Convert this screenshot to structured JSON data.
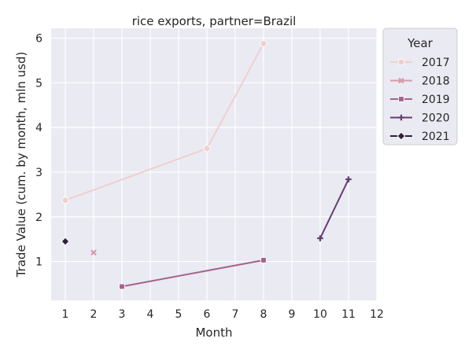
{
  "chart_data": {
    "type": "line",
    "title": "rice exports, partner=Brazil",
    "xlabel": "Month",
    "ylabel": "Trade Value (cum. by month, mln usd)",
    "xlim": [
      0.5,
      12
    ],
    "ylim": [
      0.13,
      6.22
    ],
    "xticks": [
      1,
      2,
      3,
      4,
      5,
      6,
      7,
      8,
      9,
      10,
      11,
      12
    ],
    "yticks": [
      1,
      2,
      3,
      4,
      5,
      6
    ],
    "grid": true,
    "background": "#eaeaf2",
    "legend": {
      "title": "Year",
      "placement": "outside-top-right"
    },
    "series": [
      {
        "name": "2017",
        "color": "#efd0cd",
        "marker": "circle",
        "x": [
          1,
          6,
          8
        ],
        "y": [
          2.37,
          3.53,
          5.88
        ]
      },
      {
        "name": "2018",
        "color": "#d89aaa",
        "marker": "x",
        "x": [
          2
        ],
        "y": [
          1.2
        ]
      },
      {
        "name": "2019",
        "color": "#a5628c",
        "marker": "square",
        "x": [
          3,
          8
        ],
        "y": [
          0.44,
          1.03
        ]
      },
      {
        "name": "2020",
        "color": "#683d73",
        "marker": "plus",
        "x": [
          10,
          11
        ],
        "y": [
          1.52,
          2.84
        ]
      },
      {
        "name": "2021",
        "color": "#2e1e3b",
        "marker": "diamond",
        "x": [
          1
        ],
        "y": [
          1.45
        ]
      }
    ]
  }
}
